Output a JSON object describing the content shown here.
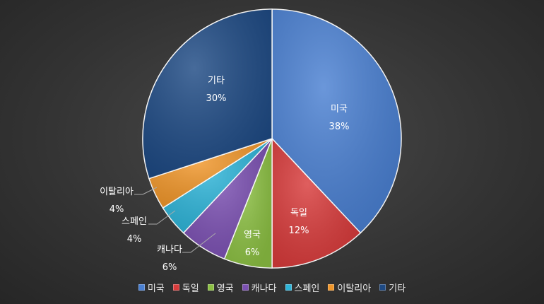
{
  "chart_data": {
    "type": "pie",
    "categories": [
      "미국",
      "독일",
      "영국",
      "캐나다",
      "스페인",
      "이탈리아",
      "기타"
    ],
    "values": [
      38,
      12,
      6,
      6,
      4,
      4,
      30
    ],
    "labels": [
      "38%",
      "12%",
      "6%",
      "6%",
      "4%",
      "4%",
      "30%"
    ],
    "colors": [
      "#4a80d2",
      "#d83b3b",
      "#8cc043",
      "#7b50b2",
      "#2eb4d8",
      "#f0962a",
      "#1e4a84"
    ],
    "start_angle": "top",
    "direction": "clockwise",
    "legend": "bottom"
  }
}
